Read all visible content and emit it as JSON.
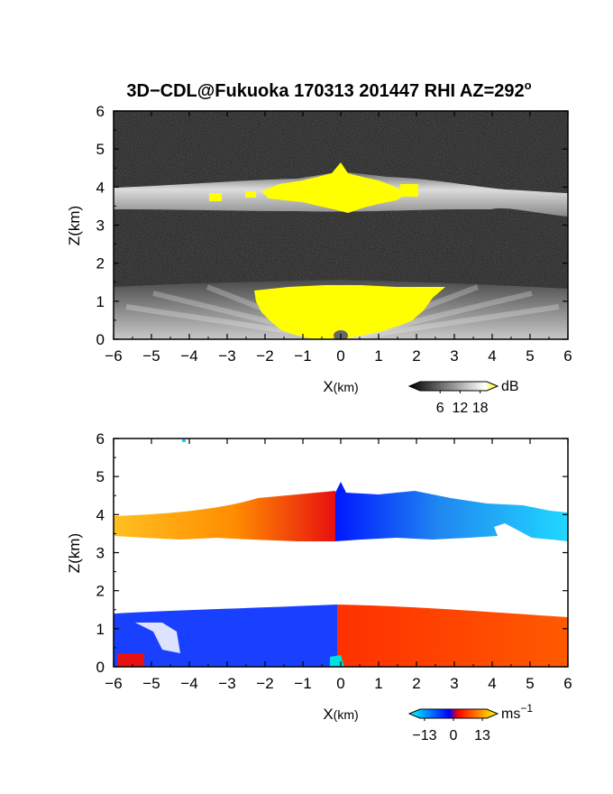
{
  "title": {
    "text": "3D−CDL@Fukuoka 170313 201447 RHI AZ=292",
    "degree_sup": "o"
  },
  "chart_data": [
    {
      "type": "heatmap",
      "name": "backscatter",
      "xlabel_main": "X",
      "xlabel_unit": "(km)",
      "ylabel": "Z(km)",
      "xlim": [
        -6,
        6
      ],
      "ylim": [
        0,
        6
      ],
      "xticks": [
        -6,
        -5,
        -4,
        -3,
        -2,
        -1,
        0,
        1,
        2,
        3,
        4,
        5,
        6
      ],
      "yticks": [
        0,
        1,
        2,
        3,
        4,
        5,
        6
      ],
      "xtick_labels": [
        "−6",
        "−5",
        "−4",
        "−3",
        "−2",
        "−1",
        "0",
        "1",
        "2",
        "3",
        "4",
        "5",
        "6"
      ],
      "ytick_labels": [
        "0",
        "1",
        "2",
        "3",
        "4",
        "5",
        "6"
      ],
      "layers": [
        {
          "kind": "cloud_layer",
          "z_bottom": 3.35,
          "z_top": 4.4
        },
        {
          "kind": "boundary_layer",
          "z_bottom": 0,
          "z_top": 1.5
        }
      ],
      "saturated_regions": [
        {
          "x_min": -1.5,
          "x_max": 1.5,
          "z_min": 3.6,
          "z_max": 4.7
        },
        {
          "x_min": -2.3,
          "x_max": 2.7,
          "z_min": 0.0,
          "z_max": 1.4
        }
      ],
      "colorbar": {
        "unit": "dB",
        "tick_labels": [
          "6",
          "12",
          "18"
        ],
        "ticks": [
          6,
          12,
          18
        ],
        "range": [
          0,
          20
        ],
        "colors": [
          "#000000",
          "#ffffff",
          "#ffff00"
        ]
      }
    },
    {
      "type": "heatmap",
      "name": "doppler-velocity",
      "xlabel_main": "X",
      "xlabel_unit": "(km)",
      "ylabel": "Z(km)",
      "xlim": [
        -6,
        6
      ],
      "ylim": [
        0,
        6
      ],
      "xticks": [
        -6,
        -5,
        -4,
        -3,
        -2,
        -1,
        0,
        1,
        2,
        3,
        4,
        5,
        6
      ],
      "yticks": [
        0,
        1,
        2,
        3,
        4,
        5,
        6
      ],
      "xtick_labels": [
        "−6",
        "−5",
        "−4",
        "−3",
        "−2",
        "−1",
        "0",
        "1",
        "2",
        "3",
        "4",
        "5",
        "6"
      ],
      "ytick_labels": [
        "0",
        "1",
        "2",
        "3",
        "4",
        "5",
        "6"
      ],
      "regions": [
        {
          "kind": "cloud_layer",
          "x_min": -6,
          "x_max": 0,
          "z_bottom": 3.3,
          "z_top": 4.6,
          "velocity_range": [
            13,
            0
          ]
        },
        {
          "kind": "cloud_layer",
          "x_min": 0,
          "x_max": 6,
          "z_bottom": 3.3,
          "z_top": 4.8,
          "velocity_range": [
            -13,
            -8
          ]
        },
        {
          "kind": "boundary_layer",
          "x_min": -6,
          "x_max": 0,
          "z_bottom": 0,
          "z_top": 1.6,
          "velocity_range": [
            -13,
            -10
          ]
        },
        {
          "kind": "boundary_layer",
          "x_min": 0,
          "x_max": 6,
          "z_bottom": 0,
          "z_top": 1.6,
          "velocity_range": [
            5,
            8
          ]
        }
      ],
      "colorbar": {
        "unit_main": "ms",
        "unit_sup": "−1",
        "tick_labels": [
          "−13",
          "0",
          "13"
        ],
        "ticks": [
          -13,
          0,
          13
        ],
        "range": [
          -15,
          15
        ],
        "colors": [
          "#00ffff",
          "#0000ff",
          "#ff0000",
          "#ffff00"
        ]
      }
    }
  ]
}
